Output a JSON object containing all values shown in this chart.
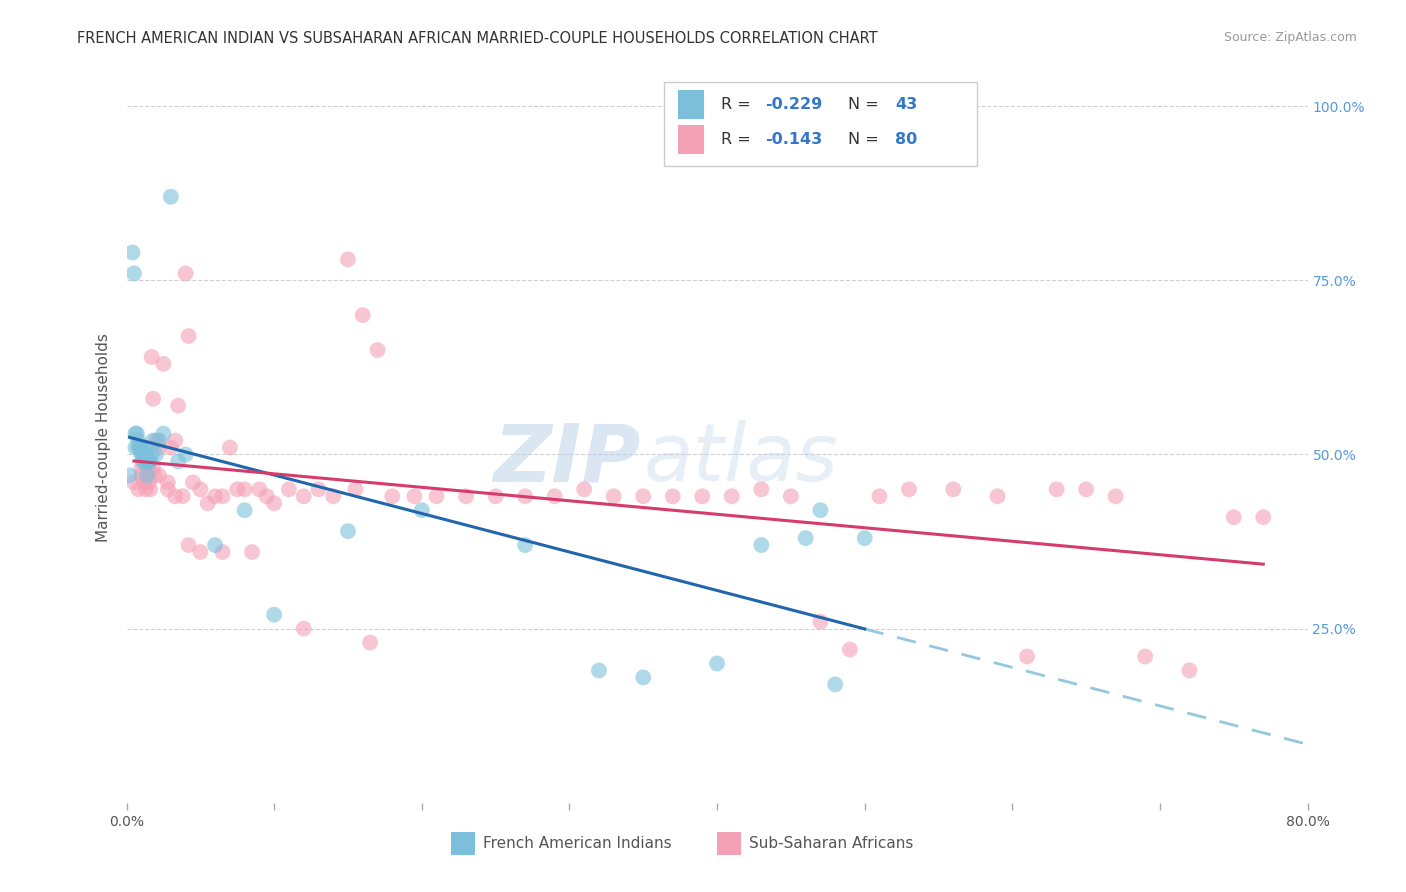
{
  "title": "FRENCH AMERICAN INDIAN VS SUBSAHARAN AFRICAN MARRIED-COUPLE HOUSEHOLDS CORRELATION CHART",
  "source": "Source: ZipAtlas.com",
  "ylabel": "Married-couple Households",
  "ylabel_right_ticks": [
    "100.0%",
    "75.0%",
    "50.0%",
    "25.0%"
  ],
  "ylabel_right_values": [
    1.0,
    0.75,
    0.5,
    0.25
  ],
  "watermark_zip": "ZIP",
  "watermark_atlas": "atlas",
  "blue_color": "#7bbfdb",
  "pink_color": "#f4a0b5",
  "blue_line_color": "#2166ac",
  "pink_line_color": "#d63c6b",
  "blue_dash_color": "#94c8e0",
  "right_tick_color": "#5599dd",
  "xlim": [
    0.0,
    0.8
  ],
  "ylim": [
    0.0,
    1.05
  ],
  "blue_x": [
    0.002,
    0.004,
    0.005,
    0.006,
    0.006,
    0.007,
    0.008,
    0.008,
    0.009,
    0.01,
    0.01,
    0.011,
    0.011,
    0.012,
    0.012,
    0.013,
    0.014,
    0.014,
    0.015,
    0.015,
    0.016,
    0.017,
    0.018,
    0.02,
    0.022,
    0.025,
    0.03,
    0.035,
    0.04,
    0.06,
    0.08,
    0.1,
    0.15,
    0.2,
    0.27,
    0.32,
    0.35,
    0.4,
    0.43,
    0.46,
    0.47,
    0.48,
    0.5
  ],
  "blue_y": [
    0.47,
    0.79,
    0.76,
    0.53,
    0.51,
    0.53,
    0.52,
    0.51,
    0.51,
    0.51,
    0.5,
    0.5,
    0.49,
    0.51,
    0.49,
    0.5,
    0.49,
    0.47,
    0.49,
    0.49,
    0.49,
    0.5,
    0.52,
    0.5,
    0.52,
    0.53,
    0.87,
    0.49,
    0.5,
    0.37,
    0.42,
    0.27,
    0.39,
    0.42,
    0.37,
    0.19,
    0.18,
    0.2,
    0.37,
    0.38,
    0.42,
    0.17,
    0.38
  ],
  "pink_x": [
    0.005,
    0.008,
    0.01,
    0.012,
    0.013,
    0.015,
    0.016,
    0.017,
    0.018,
    0.018,
    0.02,
    0.022,
    0.025,
    0.028,
    0.03,
    0.033,
    0.035,
    0.038,
    0.04,
    0.042,
    0.045,
    0.05,
    0.055,
    0.06,
    0.065,
    0.07,
    0.075,
    0.08,
    0.09,
    0.095,
    0.1,
    0.11,
    0.12,
    0.13,
    0.14,
    0.15,
    0.155,
    0.16,
    0.17,
    0.18,
    0.195,
    0.21,
    0.23,
    0.25,
    0.27,
    0.29,
    0.31,
    0.33,
    0.35,
    0.37,
    0.39,
    0.41,
    0.43,
    0.45,
    0.47,
    0.49,
    0.51,
    0.53,
    0.56,
    0.59,
    0.61,
    0.63,
    0.65,
    0.67,
    0.69,
    0.72,
    0.75,
    0.77,
    0.01,
    0.015,
    0.019,
    0.022,
    0.028,
    0.033,
    0.042,
    0.05,
    0.065,
    0.085,
    0.12,
    0.165
  ],
  "pink_y": [
    0.46,
    0.45,
    0.47,
    0.46,
    0.45,
    0.46,
    0.45,
    0.64,
    0.58,
    0.48,
    0.52,
    0.51,
    0.63,
    0.46,
    0.51,
    0.52,
    0.57,
    0.44,
    0.76,
    0.67,
    0.46,
    0.45,
    0.43,
    0.44,
    0.44,
    0.51,
    0.45,
    0.45,
    0.45,
    0.44,
    0.43,
    0.45,
    0.44,
    0.45,
    0.44,
    0.78,
    0.45,
    0.7,
    0.65,
    0.44,
    0.44,
    0.44,
    0.44,
    0.44,
    0.44,
    0.44,
    0.45,
    0.44,
    0.44,
    0.44,
    0.44,
    0.44,
    0.45,
    0.44,
    0.26,
    0.22,
    0.44,
    0.45,
    0.45,
    0.44,
    0.21,
    0.45,
    0.45,
    0.44,
    0.21,
    0.19,
    0.41,
    0.41,
    0.48,
    0.48,
    0.47,
    0.47,
    0.45,
    0.44,
    0.37,
    0.36,
    0.36,
    0.36,
    0.25,
    0.23
  ],
  "background_color": "#ffffff",
  "grid_color": "#d0d0d0",
  "title_color": "#333333",
  "axis_label_color": "#555555"
}
